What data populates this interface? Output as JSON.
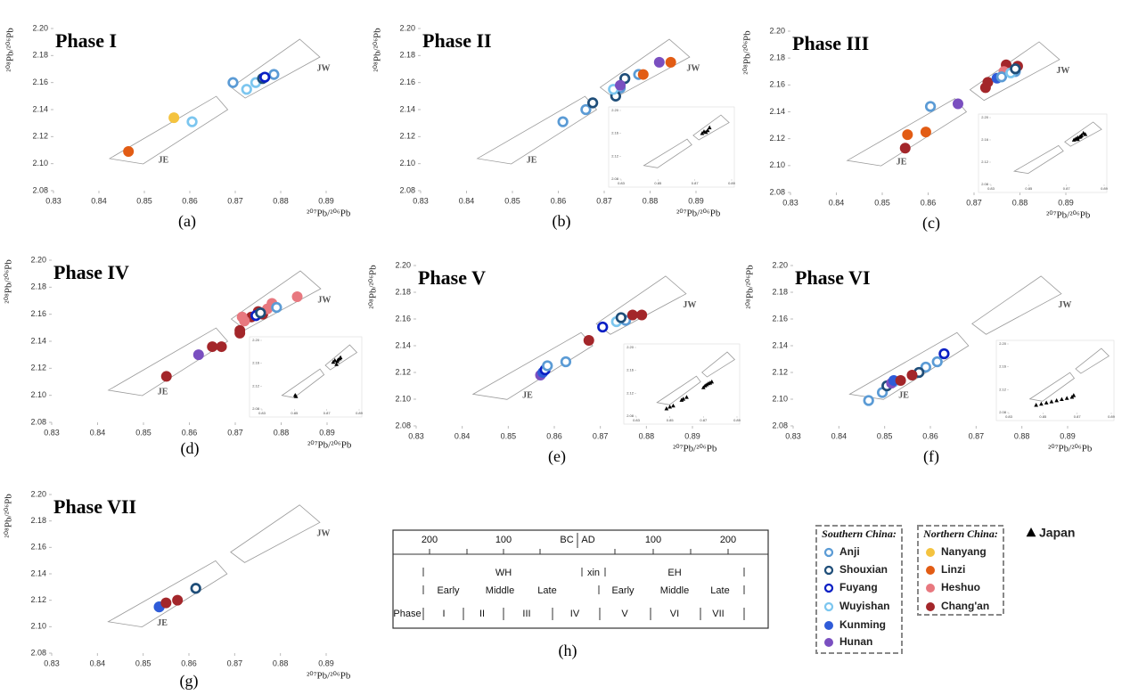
{
  "chart_data": [
    {
      "type": "scatter",
      "title": "Phase I",
      "caption": "(a)",
      "xlabel": "²⁰⁷Pb/²⁰⁶Pb",
      "ylabel": "²⁰⁸Pb/²⁰⁶Pb",
      "annotations": [
        "JE",
        "JW"
      ],
      "xlim": [
        0.83,
        0.89
      ],
      "ylim": [
        2.08,
        2.2
      ],
      "xticks": [
        0.83,
        0.84,
        0.85,
        0.86,
        0.87,
        0.88,
        0.89
      ],
      "yticks": [
        2.08,
        {
          "value": 2.1,
          "label": "2.10"
        },
        2.12,
        2.14,
        2.16,
        2.18,
        {
          "value": 2.2,
          "label": "2.20"
        }
      ],
      "series": [
        {
          "name": "Linzi",
          "x": [
            0.8465
          ],
          "y": [
            2.109
          ]
        },
        {
          "name": "Nanyang",
          "x": [
            0.8565
          ],
          "y": [
            2.134
          ]
        },
        {
          "name": "Wuyishan",
          "x": [
            0.8605,
            0.8725,
            0.8745
          ],
          "y": [
            2.131,
            2.155,
            2.16
          ]
        },
        {
          "name": "Anji",
          "x": [
            0.8695,
            0.8785
          ],
          "y": [
            2.16,
            2.166
          ]
        },
        {
          "name": "Shouxian",
          "x": [
            0.876
          ],
          "y": [
            2.163
          ]
        },
        {
          "name": "Fuyang",
          "x": [
            0.8765
          ],
          "y": [
            2.164
          ]
        }
      ]
    },
    {
      "type": "scatter",
      "title": "Phase II",
      "caption": "(b)",
      "xlabel": "²⁰⁷Pb/²⁰⁶Pb",
      "ylabel": "²⁰⁸Pb/²⁰⁶Pb",
      "annotations": [
        "JE",
        "JW"
      ],
      "xlim": [
        0.83,
        0.89
      ],
      "ylim": [
        2.08,
        2.2
      ],
      "xticks": [
        0.83,
        0.84,
        0.85,
        0.86,
        0.87,
        0.88,
        0.89
      ],
      "yticks": [
        2.08,
        {
          "value": 2.1,
          "label": "2.10"
        },
        2.12,
        2.14,
        2.16,
        2.18,
        {
          "value": 2.2,
          "label": "2.20"
        }
      ],
      "series": [
        {
          "name": "Anji",
          "x": [
            0.861,
            0.866,
            0.8735,
            0.8775
          ],
          "y": [
            2.131,
            2.14,
            2.156,
            2.166
          ]
        },
        {
          "name": "Shouxian",
          "x": [
            0.8675,
            0.8725,
            0.8745
          ],
          "y": [
            2.145,
            2.15,
            2.163
          ]
        },
        {
          "name": "Wuyishan",
          "x": [
            0.872
          ],
          "y": [
            2.155
          ]
        },
        {
          "name": "Hunan",
          "x": [
            0.8735,
            0.882
          ],
          "y": [
            2.158,
            2.175
          ]
        },
        {
          "name": "Linzi",
          "x": [
            0.8785,
            0.8845
          ],
          "y": [
            2.166,
            2.175
          ]
        }
      ],
      "inset": {
        "xticks": [
          0.83,
          0.85,
          0.87,
          0.89
        ],
        "yticks": [
          2.08,
          2.12,
          2.16,
          {
            "value": 2.2,
            "label": "2.20"
          }
        ],
        "series": [
          {
            "name": "Japan",
            "x": [
              0.874,
              0.875,
              0.876,
              0.877,
              0.878
            ],
            "y": [
              2.16,
              2.163,
              2.162,
              2.165,
              2.17
            ]
          }
        ]
      }
    },
    {
      "type": "scatter",
      "title": "Phase III",
      "caption": "(c)",
      "xlabel": "²⁰⁷Pb/²⁰⁶Pb",
      "ylabel": "²⁰⁸Pb/²⁰⁶Pb",
      "annotations": [
        "JE",
        "JW"
      ],
      "xlim": [
        0.83,
        0.89
      ],
      "ylim": [
        2.08,
        2.2
      ],
      "xticks": [
        0.83,
        0.84,
        0.85,
        0.86,
        0.87,
        0.88,
        0.89
      ],
      "yticks": [
        2.08,
        {
          "value": 2.1,
          "label": "2.10"
        },
        2.12,
        2.14,
        2.16,
        2.18,
        {
          "value": 2.2,
          "label": "2.20"
        }
      ],
      "series": [
        {
          "name": "Linzi",
          "x": [
            0.8555,
            0.8595
          ],
          "y": [
            2.123,
            2.125
          ]
        },
        {
          "name": "Chang'an",
          "x": [
            0.855,
            0.8725,
            0.873,
            0.877,
            0.8795
          ],
          "y": [
            2.113,
            2.158,
            2.162,
            2.175,
            2.174
          ]
        },
        {
          "name": "Hunan",
          "x": [
            0.8665
          ],
          "y": [
            2.146
          ]
        },
        {
          "name": "Heshuo",
          "x": [
            0.8765
          ],
          "y": [
            2.17
          ]
        },
        {
          "name": "Kunming",
          "x": [
            0.875
          ],
          "y": [
            2.165
          ]
        },
        {
          "name": "Anji",
          "x": [
            0.8605,
            0.876,
            0.879
          ],
          "y": [
            2.144,
            2.166,
            2.17
          ]
        },
        {
          "name": "Wuyishan",
          "x": [
            0.878
          ],
          "y": [
            2.169
          ]
        },
        {
          "name": "Shouxian",
          "x": [
            0.879
          ],
          "y": [
            2.172
          ]
        }
      ],
      "inset": {
        "xticks": [
          0.83,
          0.85,
          0.87,
          0.89
        ],
        "yticks": [
          2.08,
          2.12,
          2.16,
          {
            "value": 2.2,
            "label": "2.20"
          }
        ],
        "series": [
          {
            "name": "Japan",
            "x": [
              0.874,
              0.875,
              0.876,
              0.877,
              0.878,
              0.879,
              0.88,
              0.876,
              0.8775
            ],
            "y": [
              2.16,
              2.162,
              2.161,
              2.165,
              2.168,
              2.172,
              2.17,
              2.164,
              2.166
            ]
          }
        ]
      }
    },
    {
      "type": "scatter",
      "title": "Phase IV",
      "caption": "(d)",
      "xlabel": "²⁰⁷Pb/²⁰⁶Pb",
      "ylabel": "²⁰⁸Pb/²⁰⁶Pb",
      "annotations": [
        "JE",
        "JW"
      ],
      "xlim": [
        0.83,
        0.89
      ],
      "ylim": [
        2.08,
        2.2
      ],
      "xticks": [
        0.83,
        0.84,
        0.85,
        0.86,
        0.87,
        0.88,
        0.89
      ],
      "yticks": [
        2.08,
        {
          "value": 2.1,
          "label": "2.10"
        },
        2.12,
        2.14,
        2.16,
        2.18,
        {
          "value": 2.2,
          "label": "2.20"
        }
      ],
      "series": [
        {
          "name": "Chang'an",
          "x": [
            0.855,
            0.865,
            0.867,
            0.871,
            0.871,
            0.8735,
            0.875,
            0.876
          ],
          "y": [
            2.114,
            2.136,
            2.136,
            2.148,
            2.146,
            2.158,
            2.162,
            2.16
          ]
        },
        {
          "name": "Hunan",
          "x": [
            0.862
          ],
          "y": [
            2.13
          ]
        },
        {
          "name": "Heshuo",
          "x": [
            0.8715,
            0.872,
            0.877,
            0.878,
            0.8835
          ],
          "y": [
            2.158,
            2.155,
            2.164,
            2.168,
            2.173
          ]
        },
        {
          "name": "Fuyang",
          "x": [
            0.8745
          ],
          "y": [
            2.159
          ]
        },
        {
          "name": "Shouxian",
          "x": [
            0.8755
          ],
          "y": [
            2.161
          ]
        },
        {
          "name": "Anji",
          "x": [
            0.879
          ],
          "y": [
            2.165
          ]
        }
      ],
      "inset": {
        "xticks": [
          0.83,
          0.85,
          0.87,
          0.89
        ],
        "yticks": [
          2.08,
          2.12,
          2.16,
          {
            "value": 2.2,
            "label": "2.20"
          }
        ],
        "series": [
          {
            "name": "Japan",
            "x": [
              0.8505,
              0.851,
              0.874,
              0.875,
              0.8765,
              0.877,
              0.878,
              0.8785,
              0.876
            ],
            "y": [
              2.104,
              2.102,
              2.162,
              2.165,
              2.163,
              2.166,
              2.168,
              2.17,
              2.158
            ]
          }
        ]
      }
    },
    {
      "type": "scatter",
      "title": "Phase V",
      "caption": "(e)",
      "xlabel": "²⁰⁷Pb/²⁰⁶Pb",
      "ylabel": "²⁰⁸Pb/²⁰⁶Pb",
      "annotations": [
        "JE",
        "JW"
      ],
      "xlim": [
        0.83,
        0.89
      ],
      "ylim": [
        2.08,
        2.2
      ],
      "xticks": [
        0.83,
        0.84,
        0.85,
        0.86,
        0.87,
        0.88,
        0.89
      ],
      "yticks": [
        2.08,
        {
          "value": 2.1,
          "label": "2.10"
        },
        2.12,
        2.14,
        2.16,
        2.18,
        {
          "value": 2.2,
          "label": "2.20"
        }
      ],
      "series": [
        {
          "name": "Hunan",
          "x": [
            0.857
          ],
          "y": [
            2.118
          ]
        },
        {
          "name": "Kunming",
          "x": [
            0.8575
          ],
          "y": [
            2.12
          ]
        },
        {
          "name": "Fuyang",
          "x": [
            0.858,
            0.8705
          ],
          "y": [
            2.122,
            2.154
          ]
        },
        {
          "name": "Anji",
          "x": [
            0.8585,
            0.8625,
            0.8755
          ],
          "y": [
            2.125,
            2.128,
            2.159
          ]
        },
        {
          "name": "Chang'an",
          "x": [
            0.8675,
            0.877,
            0.879
          ],
          "y": [
            2.144,
            2.163,
            2.163
          ]
        },
        {
          "name": "Wuyishan",
          "x": [
            0.8735
          ],
          "y": [
            2.158
          ]
        },
        {
          "name": "Shouxian",
          "x": [
            0.8745
          ],
          "y": [
            2.161
          ]
        }
      ],
      "inset": {
        "xticks": [
          0.83,
          0.85,
          0.87,
          0.89
        ],
        "yticks": [
          2.08,
          2.12,
          2.16,
          {
            "value": 2.2,
            "label": "2.20"
          }
        ],
        "series": [
          {
            "name": "Japan",
            "x": [
              0.848,
              0.85,
              0.852,
              0.857,
              0.858,
              0.86,
              0.87,
              0.871,
              0.872,
              0.873,
              0.874,
              0.875
            ],
            "y": [
              2.093,
              2.096,
              2.098,
              2.108,
              2.11,
              2.113,
              2.13,
              2.133,
              2.135,
              2.137,
              2.138,
              2.14
            ]
          }
        ]
      }
    },
    {
      "type": "scatter",
      "title": "Phase VI",
      "caption": "(f)",
      "xlabel": "²⁰⁷Pb/²⁰⁶Pb",
      "ylabel": "²⁰⁸Pb/²⁰⁶Pb",
      "annotations": [
        "JE",
        "JW"
      ],
      "xlim": [
        0.83,
        0.89
      ],
      "ylim": [
        2.08,
        2.2
      ],
      "xticks": [
        0.83,
        0.84,
        0.85,
        0.86,
        0.87,
        0.88,
        0.89
      ],
      "yticks": [
        2.08,
        {
          "value": 2.1,
          "label": "2.10"
        },
        2.12,
        2.14,
        2.16,
        2.18,
        {
          "value": 2.2,
          "label": "2.20"
        }
      ],
      "series": [
        {
          "name": "Anji",
          "x": [
            0.8465,
            0.8495,
            0.859,
            0.8615
          ],
          "y": [
            2.099,
            2.105,
            2.124,
            2.128
          ]
        },
        {
          "name": "Shouxian",
          "x": [
            0.8505,
            0.8575
          ],
          "y": [
            2.11,
            2.12
          ]
        },
        {
          "name": "Wuyishan",
          "x": [
            0.852
          ],
          "y": [
            2.113
          ]
        },
        {
          "name": "Hunan",
          "x": [
            0.8515
          ],
          "y": [
            2.112
          ]
        },
        {
          "name": "Kunming",
          "x": [
            0.852
          ],
          "y": [
            2.114
          ]
        },
        {
          "name": "Chang'an",
          "x": [
            0.8535,
            0.856
          ],
          "y": [
            2.114,
            2.118
          ]
        },
        {
          "name": "Fuyang",
          "x": [
            0.863
          ],
          "y": [
            2.134
          ]
        }
      ],
      "inset": {
        "xticks": [
          0.83,
          0.85,
          0.87,
          0.89
        ],
        "yticks": [
          2.08,
          2.12,
          2.16,
          {
            "value": 2.2,
            "label": "2.20"
          }
        ],
        "series": [
          {
            "name": "Japan",
            "x": [
              0.846,
              0.849,
              0.852,
              0.855,
              0.858,
              0.861,
              0.864,
              0.867,
              0.868
            ],
            "y": [
              2.093,
              2.095,
              2.097,
              2.099,
              2.101,
              2.103,
              2.105,
              2.107,
              2.11
            ]
          }
        ]
      }
    },
    {
      "type": "scatter",
      "title": "Phase VII",
      "caption": "(g)",
      "xlabel": "²⁰⁷Pb/²⁰⁶Pb",
      "ylabel": "²⁰⁸Pb/²⁰⁶Pb",
      "annotations": [
        "JE",
        "JW"
      ],
      "xlim": [
        0.83,
        0.89
      ],
      "ylim": [
        2.08,
        2.2
      ],
      "xticks": [
        0.83,
        0.84,
        0.85,
        0.86,
        0.87,
        0.88,
        0.89
      ],
      "yticks": [
        2.08,
        {
          "value": 2.1,
          "label": "2.10"
        },
        2.12,
        2.14,
        2.16,
        2.18,
        {
          "value": 2.2,
          "label": "2.20"
        }
      ],
      "series": [
        {
          "name": "Anji",
          "x": [
            0.8535
          ],
          "y": [
            2.115
          ]
        },
        {
          "name": "Kunming",
          "x": [
            0.8535
          ],
          "y": [
            2.115
          ]
        },
        {
          "name": "Chang'an",
          "x": [
            0.855,
            0.8575
          ],
          "y": [
            2.118,
            2.12
          ]
        },
        {
          "name": "Shouxian",
          "x": [
            0.8615
          ],
          "y": [
            2.129
          ]
        }
      ]
    }
  ],
  "legend": {
    "groups": [
      {
        "title": "Southern China:",
        "items": [
          {
            "name": "Anji",
            "color": "#5b9bd5",
            "marker": "ring"
          },
          {
            "name": "Shouxian",
            "color": "#1f4e79",
            "marker": "ring"
          },
          {
            "name": "Fuyang",
            "color": "#0a1fc4",
            "marker": "ring"
          },
          {
            "name": "Wuyishan",
            "color": "#7cc6ef",
            "marker": "ring"
          },
          {
            "name": "Kunming",
            "color": "#2f5bd8",
            "marker": "dot"
          },
          {
            "name": "Hunan",
            "color": "#7a4fc0",
            "marker": "dot"
          }
        ]
      },
      {
        "title": "Northern China:",
        "items": [
          {
            "name": "Nanyang",
            "color": "#f4c33f",
            "marker": "dot"
          },
          {
            "name": "Linzi",
            "color": "#e25c14",
            "marker": "dot"
          },
          {
            "name": "Heshuo",
            "color": "#e8787f",
            "marker": "dot"
          },
          {
            "name": "Chang'an",
            "color": "#a3262a",
            "marker": "dot"
          }
        ]
      }
    ],
    "items": [
      {
        "name": "Japan",
        "color": "#000000",
        "marker": "triangle"
      }
    ]
  },
  "timeline": {
    "caption": "(h)",
    "scale": [
      "200",
      "100",
      "BC",
      "AD",
      "100",
      "200"
    ],
    "periods": [
      "WH",
      "xin",
      "EH"
    ],
    "subperiods": [
      "Early",
      "Middle",
      "Late",
      "Early",
      "Middle",
      "Late"
    ],
    "phase_label": "Phase",
    "phases": [
      "I",
      "II",
      "III",
      "IV",
      "V",
      "VI",
      "VII"
    ]
  }
}
